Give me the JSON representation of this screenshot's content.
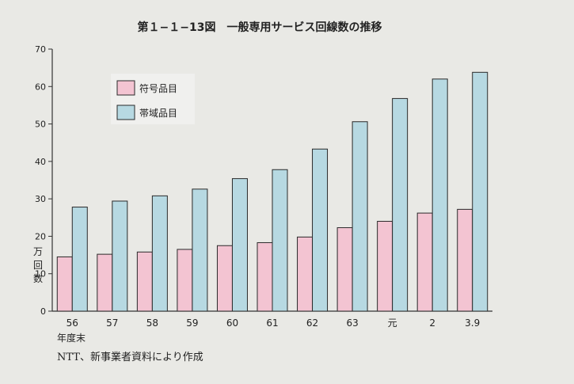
{
  "chart_data": {
    "type": "bar",
    "title": "第１−１−13図　一般専用サービス回線数の推移",
    "ylabel": "万回数",
    "xlabel": "年度末",
    "ylim": [
      0,
      70
    ],
    "yticks": [
      0,
      10,
      20,
      30,
      40,
      50,
      60,
      70
    ],
    "categories": [
      "56",
      "57",
      "58",
      "59",
      "60",
      "61",
      "62",
      "63",
      "元",
      "2",
      "3.9"
    ],
    "series": [
      {
        "name": "符号品目",
        "values": [
          14.5,
          15.2,
          15.8,
          16.5,
          17.5,
          18.3,
          19.8,
          22.3,
          24.0,
          26.2,
          27.2
        ]
      },
      {
        "name": "帯域品目",
        "values": [
          27.8,
          29.4,
          30.8,
          32.6,
          35.4,
          37.8,
          43.3,
          50.6,
          56.8,
          62.0,
          63.8
        ]
      }
    ],
    "colors": {
      "符号品目": "#f3c4d2",
      "帯域品目": "#b7d9e2"
    },
    "grid": false,
    "legend_position": "top-left",
    "source": "NTT、新事業者資料により作成"
  }
}
